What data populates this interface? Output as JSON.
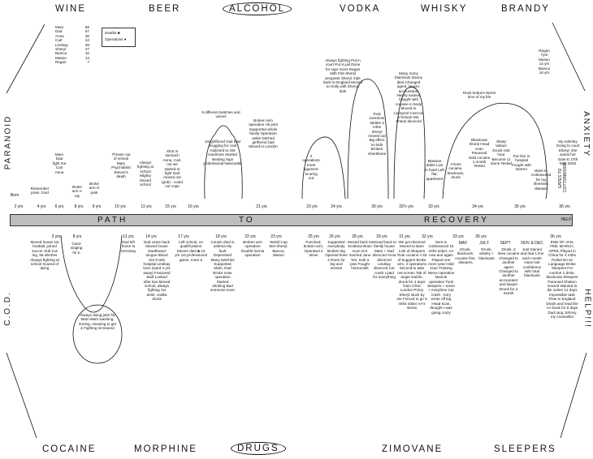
{
  "top_headers": [
    "WINE",
    "BEER",
    "ALCOHOL",
    "VODKA",
    "WHISKY",
    "BRANDY"
  ],
  "bottom_headers": [
    "COCAINE",
    "MORPHINE",
    "DRUGS",
    "ZIMOVANE",
    "SLEEPERS"
  ],
  "left_side": {
    "top": "PARANOID",
    "bottom": "C.O.D."
  },
  "right_side": {
    "top": "ANXIETY",
    "bottom": "HELP!!!"
  },
  "timeline_label": {
    "path": "PATH",
    "to": "TO",
    "recovery": "RECOVERY",
    "help": "HELP",
    "gates": "GATES TO COTTONWOOD"
  },
  "ages_legend": {
    "rows": [
      [
        "Mam",
        "59"
      ],
      [
        "Dad",
        "57"
      ],
      [
        "Anna",
        "36"
      ],
      [
        "Carl",
        "34"
      ],
      [
        "Lindsay",
        "28"
      ],
      [
        "Sheryl",
        "27"
      ],
      [
        "Bianca",
        "16"
      ],
      [
        "Mason",
        "14"
      ],
      [
        "Regan",
        "7"
      ]
    ]
  },
  "key_legend": {
    "deaths": "Deaths ■",
    "operations": "Operations ●"
  },
  "top_right_note": [
    "Regan",
    "7yrs",
    "Mason",
    "14 yrs",
    "Bianca",
    "16 yrs"
  ],
  "top_ages": [
    "Born",
    "2 yrs",
    "4 yrs",
    "6 yrs",
    "8 yrs",
    "9 yrs",
    "10 yrs",
    "11 yrs",
    "15 yrs",
    "16 yrs",
    "21 yrs",
    "23 yrs",
    "24 yrs",
    "30 yrs",
    "32½ yrs",
    "33 yrs",
    "34 yrs",
    "35 yrs",
    "36 yrs"
  ],
  "bottom_ages": [
    "3 yrs",
    "8 yrs",
    "11 yrs",
    "14 yrs",
    "17 yrs",
    "18 yrs",
    "22 yrs",
    "23 yrs",
    "25 yrs",
    "26 yrs",
    "28 yrs",
    "29 yrs",
    "31 yrs",
    "32 yrs",
    "33 yrs",
    "35 yrs",
    "MAY",
    "JULY",
    "SEPT",
    "NOV & DEC",
    "36 yrs"
  ],
  "top_notes": [
    "Remember pram, food",
    "Mam Dad fight me Carl Anna",
    "Broke arm x-ray",
    "Broke arm in park",
    "Thrown out of school Mary Psychiatrist Steven's death",
    "Always fighting at school Mighty Moved school",
    "Shot in stomach Anna, Carl, me we started to fight Dad moved out (pub) - could not cope",
    "1st girlfriend Gail Dad drugging for coal Addicted to slot machines Started stealing Sign professional Newcastle",
    "9 different twitches and voices",
    "Broken arm operation Hit joint Supported whole family Operation ankle Ditched girlfriend Gail Moved to London",
    "2 operations Knee ligament Scoring out",
    "Always fighting Put in court Put in jail Done for rape Sons Regan 18th Feb Sheryl pregnant Sheryl, kids back to England Moved to Holly with Sheryl, kids",
    "Took overdose tablets 3 mths Sheryl moved out Big effect no kids Broken cheekbone",
    "Many many blackouts Danny died Changed agent, lawyer, accountants Nearly sacked Caught with cocaine in body Moved to Liverpool Cost me a fortune Me, Sheryl divorced",
    "Massive debts Live in hotel Left flat, apartment",
    "Rock bottom! Worst time of my life",
    "4 lines cocaine, blackouts, drunk",
    "Blackouts Drunk Head scan Paranoid Sold cocaine 1 month Tested",
    "Sleep Valium Drunk rest hour Become 11 stone Tested",
    "Put him in hospital Fought with Darren",
    "Want to Cottonwood for my illnesses disease",
    "My sobriety Going to court Sheryl, she wants her Gate E 27th May 2003"
  ],
  "bottom_notes": [
    "Moved house 1st football, joined soccer club Cut leg, 56 stitches Always fighting at school Scared of dying",
    "Carol singing for £",
    "Dad left home to Germany",
    "Always doing jobs for Mam Mam washing, ironing, cleaning to get £ Fighting increased",
    "Dad came back Moved house Swallowed tongue Blood clot 8 wks hospital Lindsay born (ward 4 yrs away) Fractured skull Looked after two Moved school, always fighting 1st drink, vodka drunk",
    "Left school, no qualifications Steven died ■ 13 yrs 1st professional game, more £",
    "Cousin died in asthma My fault Depressed Many twitches Supported Mam, Dad Broke nose operation Started drinking Bad someone lover",
    "Broken arm operation Double hernia operation",
    "World Cup Met Sheryl, Bianca, Mason",
    "Punched, broken arm, Operated 4 times",
    "Supported everybody Broken leg Opened knee 2 times for leg and screws",
    "Moved back to Scotland Brain scan Got married June Yes, took a piss Fought hemoroids",
    "Moved back to family house Mam + Dad divorced Anna divorced Lindsay divorced Car crash I paid for everything",
    "We got divorced Moved to Barn Lots of sleepers Took cocaine A lot of buggers Broke arm, 2 operations Second to take net screen Tab of anger Dublin, drunk for 4 days Train Clinic London Priory Sheryl stuck by me Forced to go 9 mths sober AA's stress",
    "Sent to Cottonwood 15 mths sober, AA now and again Played one more year Hold scan Training Nerve operation Muscle operation Took sleepers + some + morphine Car crash - lorry wrote off leg Head scan, thought I was going crazy",
    "Drunk, blackouts, cocaine fine, sleepers",
    "Drunk, whisky + blackouts",
    "Drunk, 2 lines cocaine Changed to another agent Changed to another accountant and lawyer Drunk for a month",
    "Just trained and had 1 line each month Have lost confidence with total blackouts",
    "END OF JAN, FEB, MARCH, APRIL Played in China for 4 mths Pulled No sir Language Broke Sleepers For comfort 1 drink, blackouts Sleepers Paranoid Shaken Scared Wanted to die Sober 12 days Impossible task Flew to England Drank and read the AA book for 8 days Dad rang Johnny my counsellor"
  ]
}
